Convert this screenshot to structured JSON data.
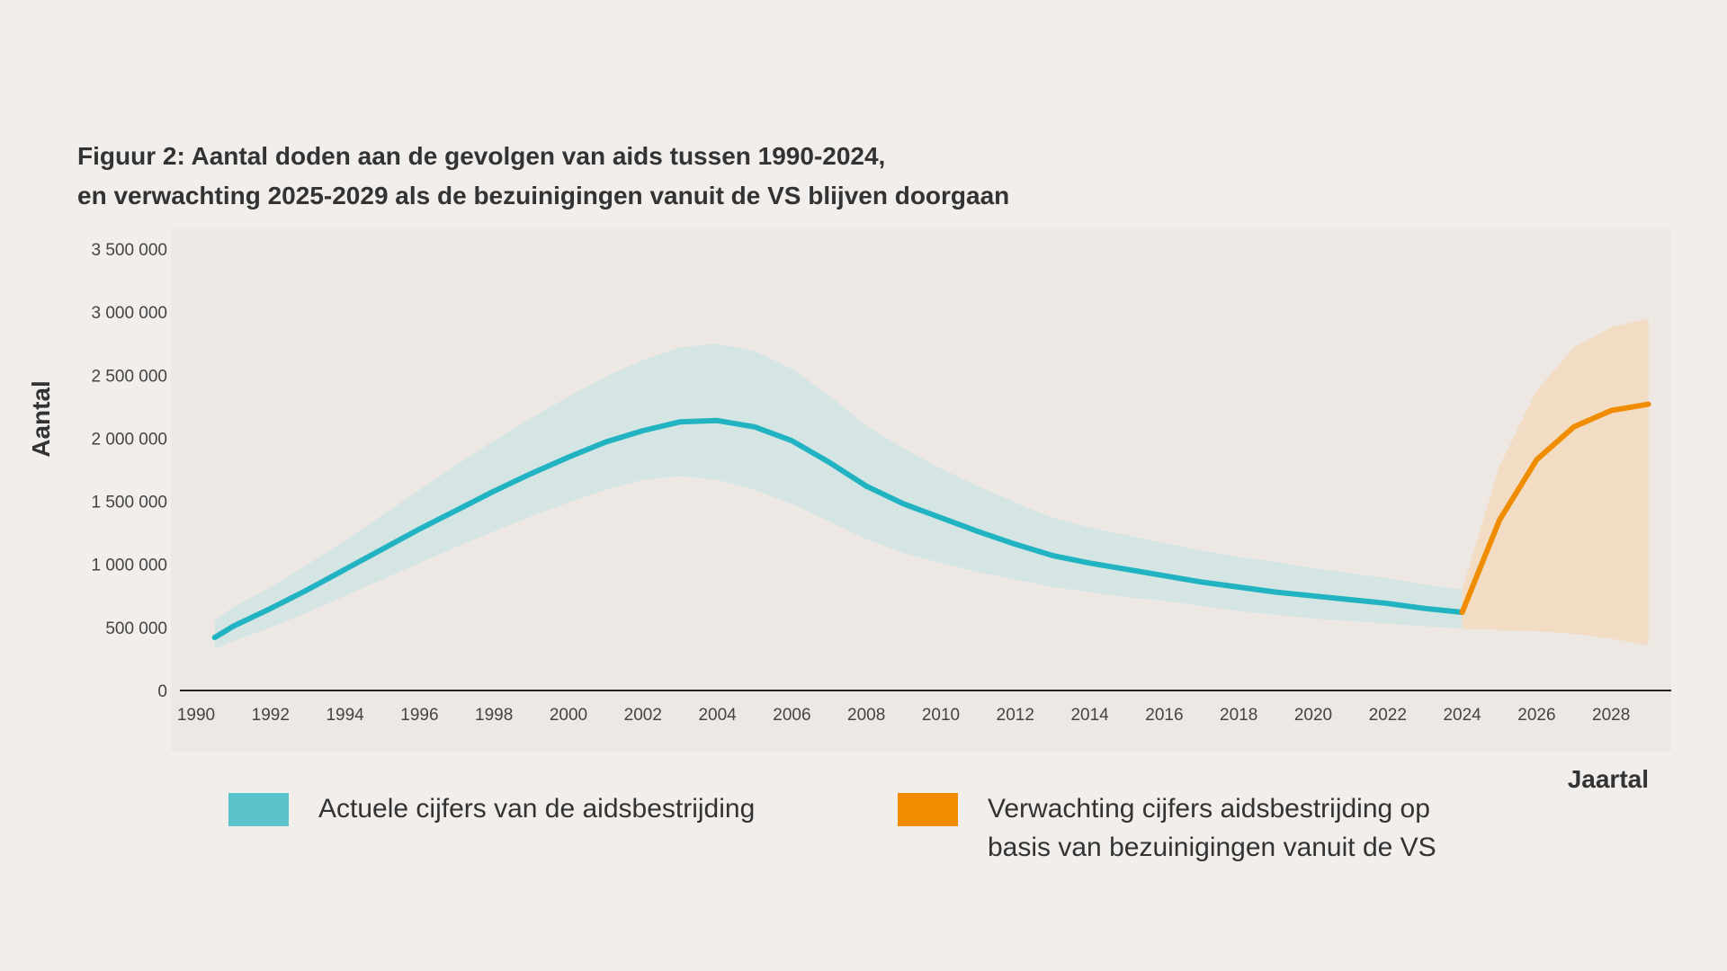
{
  "title": {
    "line1": "Figuur 2: Aantal doden aan de gevolgen van aids tussen 1990-2024,",
    "line2": "en verwachting 2025-2029 als de bezuinigingen vanuit de VS blijven doorgaan"
  },
  "legend": {
    "actual": {
      "label": "Actuele cijfers van de aidsbestrijding",
      "color": "#5bc3cc"
    },
    "projected": {
      "label_line1": "Verwachting cijfers aidsbestrijding op",
      "label_line2": "basis van bezuinigingen vanuit de VS",
      "color": "#f08c00"
    }
  },
  "chart_data": {
    "type": "line",
    "title": "Figuur 2: Aantal doden aan de gevolgen van aids tussen 1990-2024, en verwachting 2025-2029 als de bezuinigingen vanuit de VS blijven doorgaan",
    "xlabel": "Jaartal",
    "ylabel": "Aantal",
    "xlim": [
      1990,
      2029.5
    ],
    "ylim": [
      0,
      3500000
    ],
    "x_ticks": [
      "1990",
      "1992",
      "1994",
      "1996",
      "1998",
      "2000",
      "2002",
      "2004",
      "2006",
      "2008",
      "2010",
      "2012",
      "2014",
      "2016",
      "2018",
      "2020",
      "2022",
      "2024",
      "2026",
      "2028"
    ],
    "y_ticks": [
      "0",
      "500 000",
      "1 000 000",
      "1 500 000",
      "2 000 000",
      "2 500 000",
      "3 000 000",
      "3 500 000"
    ],
    "y_tick_values": [
      0,
      500000,
      1000000,
      1500000,
      2000000,
      2500000,
      3000000,
      3500000
    ],
    "grid": false,
    "series": [
      {
        "name": "Actuele cijfers van de aidsbestrijding",
        "color": "#21b3c1",
        "band_color": "#d5e5e3",
        "x": [
          1990.5,
          1991,
          1992,
          1993,
          1994,
          1995,
          1996,
          1997,
          1998,
          1999,
          2000,
          2001,
          2002,
          2003,
          2004,
          2005,
          2006,
          2007,
          2008,
          2009,
          2010,
          2011,
          2012,
          2013,
          2014,
          2015,
          2016,
          2017,
          2018,
          2019,
          2020,
          2021,
          2022,
          2023,
          2024
        ],
        "values": [
          420000,
          510000,
          650000,
          800000,
          960000,
          1120000,
          1280000,
          1430000,
          1580000,
          1720000,
          1850000,
          1970000,
          2060000,
          2130000,
          2140000,
          2090000,
          1980000,
          1810000,
          1620000,
          1480000,
          1370000,
          1260000,
          1160000,
          1070000,
          1010000,
          960000,
          910000,
          860000,
          820000,
          780000,
          750000,
          720000,
          690000,
          650000,
          620000
        ],
        "upper": [
          560000,
          660000,
          820000,
          1000000,
          1190000,
          1390000,
          1590000,
          1790000,
          1980000,
          2160000,
          2330000,
          2490000,
          2620000,
          2720000,
          2750000,
          2690000,
          2550000,
          2340000,
          2100000,
          1920000,
          1760000,
          1620000,
          1490000,
          1370000,
          1290000,
          1230000,
          1170000,
          1110000,
          1060000,
          1020000,
          970000,
          930000,
          890000,
          840000,
          800000
        ],
        "lower": [
          330000,
          390000,
          500000,
          620000,
          750000,
          880000,
          1010000,
          1140000,
          1260000,
          1380000,
          1490000,
          1590000,
          1670000,
          1700000,
          1670000,
          1590000,
          1480000,
          1340000,
          1200000,
          1090000,
          1010000,
          940000,
          880000,
          820000,
          780000,
          740000,
          710000,
          670000,
          630000,
          600000,
          570000,
          550000,
          530000,
          510000,
          490000
        ]
      },
      {
        "name": "Verwachting cijfers aidsbestrijding op basis van bezuinigingen vanuit de VS",
        "color": "#f08c00",
        "band_color": "#f3dcc4",
        "x": [
          2024,
          2025,
          2026,
          2027,
          2028,
          2029
        ],
        "values": [
          620000,
          1350000,
          1830000,
          2090000,
          2220000,
          2270000
        ],
        "upper": [
          800000,
          1780000,
          2380000,
          2720000,
          2880000,
          2950000
        ],
        "lower": [
          490000,
          480000,
          470000,
          450000,
          410000,
          360000
        ]
      }
    ]
  }
}
